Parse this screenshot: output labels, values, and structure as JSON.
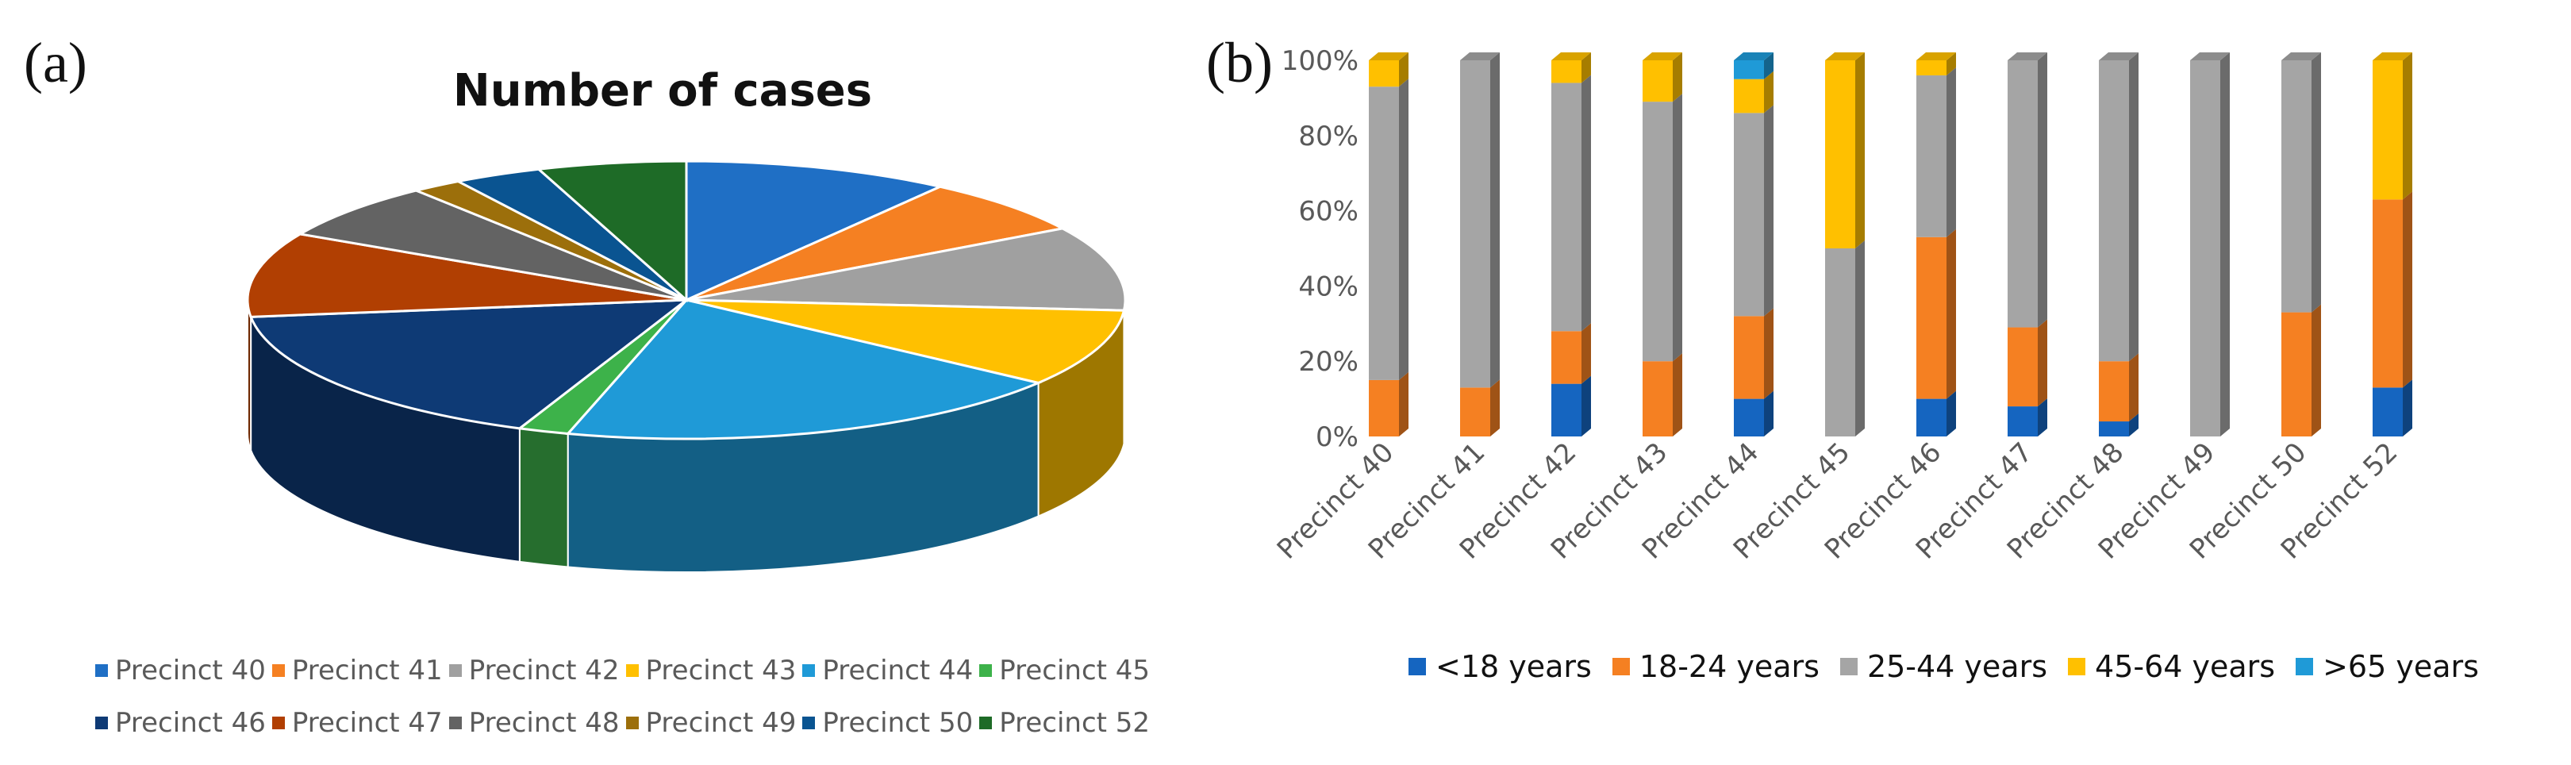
{
  "panel_a": {
    "label": "(a)",
    "chart_data": {
      "type": "pie",
      "title": "Number of cases",
      "style": "3d",
      "slices": [
        {
          "label": "Precinct 40",
          "value": 10.6,
          "color": "#1f6fc5"
        },
        {
          "label": "Precinct 41",
          "value": 7.1,
          "color": "#f58022"
        },
        {
          "label": "Precinct 42",
          "value": 10.6,
          "color": "#a0a0a0"
        },
        {
          "label": "Precinct 43",
          "value": 9.7,
          "color": "#ffc000"
        },
        {
          "label": "Precinct 44",
          "value": 20.7,
          "color": "#1f9ad7"
        },
        {
          "label": "Precinct 45",
          "value": 2.0,
          "color": "#3db24a"
        },
        {
          "label": "Precinct 46",
          "value": 18.2,
          "color": "#0e3a75"
        },
        {
          "label": "Precinct 47",
          "value": 10.6,
          "color": "#b13f02"
        },
        {
          "label": "Precinct 48",
          "value": 7.1,
          "color": "#636363"
        },
        {
          "label": "Precinct 49",
          "value": 2.0,
          "color": "#9c6f0b"
        },
        {
          "label": "Precinct 50",
          "value": 3.5,
          "color": "#0a5491"
        },
        {
          "label": "Precinct 52",
          "value": 5.9,
          "color": "#1e6b27"
        }
      ]
    }
  },
  "panel_b": {
    "label": "(b)",
    "chart_data": {
      "type": "bar",
      "stacked": "percent",
      "categories": [
        "Precinct 40",
        "Precinct 41",
        "Precinct 42",
        "Precinct 43",
        "Precinct 44",
        "Precinct 45",
        "Precinct 46",
        "Precinct 47",
        "Precinct 48",
        "Precinct 49",
        "Precinct 50",
        "Precinct 52"
      ],
      "series": [
        {
          "name": "<18 years",
          "color": "#1565c0",
          "values": [
            0,
            0,
            14,
            0,
            10,
            0,
            10,
            8,
            4,
            0,
            0,
            13
          ]
        },
        {
          "name": "18-24 years",
          "color": "#f58022",
          "values": [
            15,
            13,
            14,
            20,
            22,
            0,
            43,
            21,
            16,
            0,
            33,
            50
          ]
        },
        {
          "name": "25-44 years",
          "color": "#a5a5a5",
          "values": [
            78,
            87,
            66,
            69,
            54,
            50,
            43,
            71,
            80,
            100,
            67,
            0
          ]
        },
        {
          "name": "45-64 years",
          "color": "#ffc000",
          "values": [
            7,
            0,
            6,
            11,
            9,
            50,
            4,
            0,
            0,
            0,
            0,
            37
          ]
        },
        {
          "name": ">65 years",
          "color": "#1f9ad7",
          "values": [
            0,
            0,
            0,
            0,
            5,
            0,
            0,
            0,
            0,
            0,
            0,
            0
          ]
        }
      ],
      "yticks": [
        "0%",
        "20%",
        "40%",
        "60%",
        "80%",
        "100%"
      ],
      "ylim": [
        0,
        100
      ]
    }
  }
}
